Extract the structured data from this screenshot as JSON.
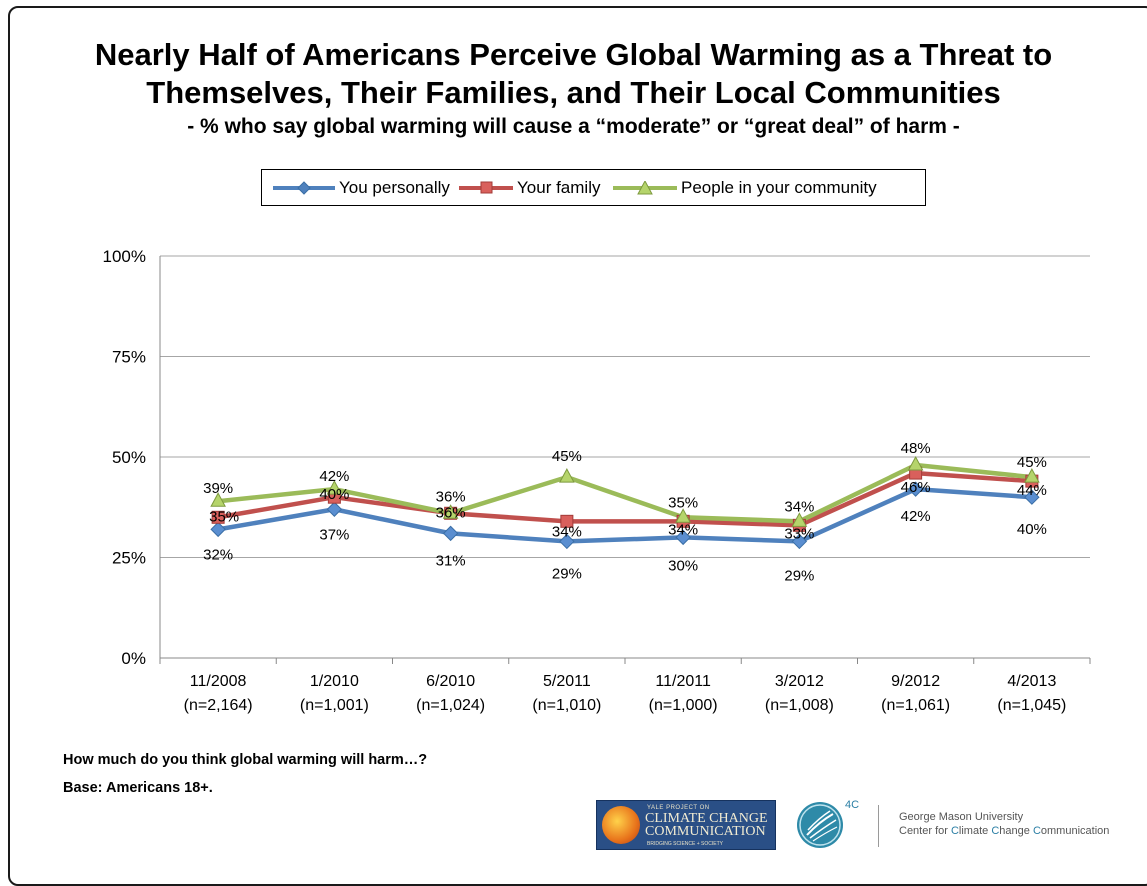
{
  "title": "Nearly Half of Americans Perceive Global Warming as a Threat to Themselves, Their Families, and Their Local Communities",
  "title_line1": "Nearly Half of Americans Perceive Global Warming as a Threat to",
  "title_line2": "Themselves, Their Families, and Their Local Communities",
  "subtitle": "- % who say global warming will cause a “moderate” or “great deal” of harm -",
  "notes": {
    "question": "How much do you think global warming will harm…?",
    "base": "Base: Americans 18+."
  },
  "logos": {
    "yale_small": "YALE PROJECT ON",
    "yale_line1": "CLIMATE CHANGE",
    "yale_line2": "COMMUNICATION",
    "yale_tagline": "BRIDGING SCIENCE + SOCIETY",
    "fourc": "4C",
    "gmu_line1": "George Mason University",
    "gmu_line2_parts": [
      "Center for ",
      "C",
      "limate ",
      "C",
      "hange ",
      "C",
      "ommunication"
    ]
  },
  "chart_data": {
    "type": "line",
    "categories": [
      "11/2008",
      "1/2010",
      "6/2010",
      "5/2011",
      "11/2011",
      "3/2012",
      "9/2012",
      "4/2013"
    ],
    "category_sublabels": [
      "(n=2,164)",
      "(n=1,001)",
      "(n=1,024)",
      "(n=1,010)",
      "(n=1,000)",
      "(n=1,008)",
      "(n=1,061)",
      "(n=1,045)"
    ],
    "ylim": [
      0,
      100
    ],
    "yticks": [
      0,
      25,
      50,
      75,
      100
    ],
    "ytick_labels": [
      "0%",
      "25%",
      "50%",
      "75%",
      "100%"
    ],
    "grid": true,
    "legend_position": "top",
    "series": [
      {
        "name": "You personally",
        "values": [
          32,
          37,
          31,
          29,
          30,
          29,
          42,
          40
        ],
        "color": "#4f81bd",
        "marker": "diamond",
        "value_labels": [
          "32%",
          "37%",
          "31%",
          "29%",
          "30%",
          "29%",
          "42%",
          "40%"
        ]
      },
      {
        "name": "Your family",
        "values": [
          35,
          40,
          36,
          34,
          34,
          33,
          46,
          44
        ],
        "color": "#c0504d",
        "marker": "square",
        "value_labels": [
          "35%",
          "40%",
          "36%",
          "34%",
          "34%",
          "33%",
          "46%",
          "44%"
        ]
      },
      {
        "name": "People in your community",
        "values": [
          39,
          42,
          36,
          45,
          35,
          34,
          48,
          45
        ],
        "color": "#9bbb59",
        "marker": "triangle",
        "value_labels": [
          "39%",
          "42%",
          "36%",
          "45%",
          "35%",
          "34%",
          "48%",
          "45%"
        ]
      }
    ]
  }
}
